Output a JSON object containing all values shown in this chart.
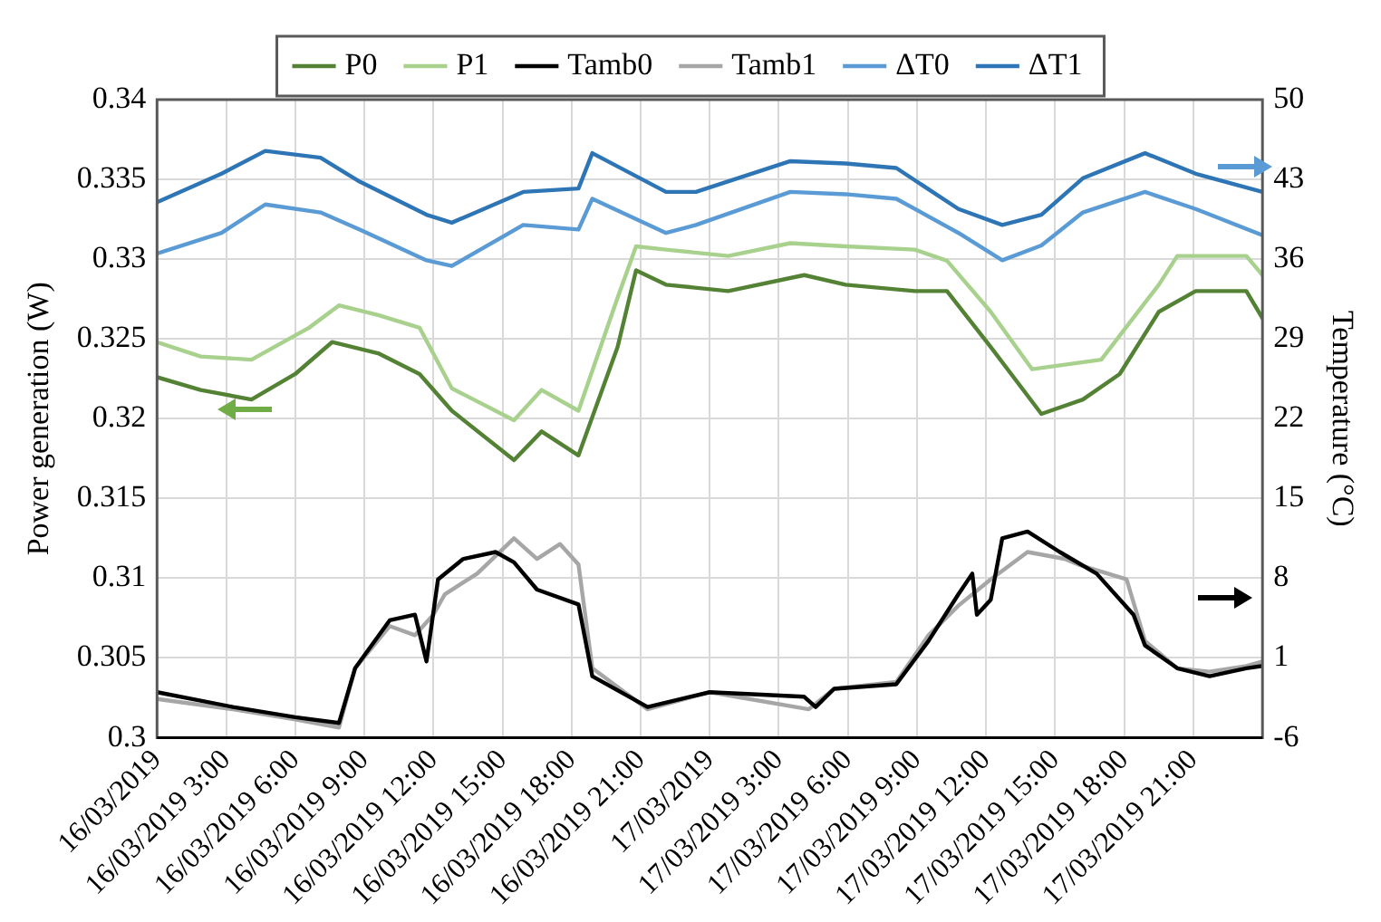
{
  "chart_data": {
    "type": "line",
    "ylabel": "Power generation (W)",
    "y2label": "Temperature (°C)",
    "xlim": [
      "2019-03-16T00:00",
      "2019-03-18T00:00"
    ],
    "xticks": [
      {
        "value": "2019-03-16T00:00",
        "label": "16/03/2019"
      },
      {
        "value": "2019-03-16T03:00",
        "label": "16/03/2019 3:00"
      },
      {
        "value": "2019-03-16T06:00",
        "label": "16/03/2019 6:00"
      },
      {
        "value": "2019-03-16T09:00",
        "label": "16/03/2019 9:00"
      },
      {
        "value": "2019-03-16T12:00",
        "label": "16/03/2019 12:00"
      },
      {
        "value": "2019-03-16T15:00",
        "label": "16/03/2019 15:00"
      },
      {
        "value": "2019-03-16T18:00",
        "label": "16/03/2019 18:00"
      },
      {
        "value": "2019-03-16T21:00",
        "label": "16/03/2019 21:00"
      },
      {
        "value": "2019-03-17T00:00",
        "label": "17/03/2019"
      },
      {
        "value": "2019-03-17T03:00",
        "label": "17/03/2019 3:00"
      },
      {
        "value": "2019-03-17T06:00",
        "label": "17/03/2019 6:00"
      },
      {
        "value": "2019-03-17T09:00",
        "label": "17/03/2019 9:00"
      },
      {
        "value": "2019-03-17T12:00",
        "label": "17/03/2019 12:00"
      },
      {
        "value": "2019-03-17T15:00",
        "label": "17/03/2019 15:00"
      },
      {
        "value": "2019-03-17T18:00",
        "label": "17/03/2019 18:00"
      },
      {
        "value": "2019-03-17T21:00",
        "label": "17/03/2019 21:00"
      }
    ],
    "ylim": [
      0.3,
      0.34
    ],
    "yticks": [
      0.3,
      0.305,
      0.31,
      0.315,
      0.32,
      0.325,
      0.33,
      0.335,
      0.34
    ],
    "y2lim": [
      -6,
      50
    ],
    "y2ticks": [
      -6,
      1,
      8,
      15,
      22,
      29,
      36,
      43,
      50
    ],
    "grid": true,
    "legend": "top",
    "marker": "none",
    "line_style": "solid",
    "series": [
      {
        "name": "P0",
        "color": "#548235",
        "x": [
          "2019-03-16T00:00",
          "2019-03-16T01:54",
          "2019-03-16T04:06",
          "2019-03-16T06:00",
          "2019-03-16T07:36",
          "2019-03-16T09:36",
          "2019-03-16T11:24",
          "2019-03-16T12:48",
          "2019-03-16T15:30",
          "2019-03-16T16:42",
          "2019-03-16T18:18",
          "2019-03-16T20:00",
          "2019-03-16T20:48",
          "2019-03-16T22:06",
          "2019-03-17T00:48",
          "2019-03-17T04:06",
          "2019-03-17T05:54",
          "2019-03-17T08:54",
          "2019-03-17T10:18",
          "2019-03-17T12:12",
          "2019-03-17T14:24",
          "2019-03-17T16:12",
          "2019-03-17T17:48",
          "2019-03-17T19:30",
          "2019-03-17T21:06",
          "2019-03-17T23:18",
          "2019-03-18T00:00"
        ],
        "values": [
          0.3226,
          0.3218,
          0.3212,
          0.3228,
          0.3248,
          0.3241,
          0.3228,
          0.3205,
          0.3174,
          0.3192,
          0.3177,
          0.3245,
          0.3293,
          0.3284,
          0.328,
          0.329,
          0.3284,
          0.328,
          0.328,
          0.3245,
          0.3203,
          0.3212,
          0.3228,
          0.3267,
          0.328,
          0.328,
          0.3263
        ]
      },
      {
        "name": "P1",
        "color": "#a9d18e",
        "x": [
          "2019-03-16T00:00",
          "2019-03-16T01:54",
          "2019-03-16T04:06",
          "2019-03-16T06:36",
          "2019-03-16T07:54",
          "2019-03-16T09:36",
          "2019-03-16T11:24",
          "2019-03-16T12:48",
          "2019-03-16T15:30",
          "2019-03-16T16:42",
          "2019-03-16T18:18",
          "2019-03-16T20:00",
          "2019-03-16T20:48",
          "2019-03-16T22:06",
          "2019-03-17T00:48",
          "2019-03-17T03:30",
          "2019-03-17T05:54",
          "2019-03-17T08:54",
          "2019-03-17T10:18",
          "2019-03-17T12:12",
          "2019-03-17T14:00",
          "2019-03-17T17:00",
          "2019-03-17T19:30",
          "2019-03-17T20:18",
          "2019-03-17T23:18",
          "2019-03-18T00:00"
        ],
        "values": [
          0.3248,
          0.3239,
          0.3237,
          0.3257,
          0.3271,
          0.3265,
          0.3257,
          0.3219,
          0.3199,
          0.3218,
          0.3205,
          0.3276,
          0.3308,
          0.3306,
          0.3302,
          0.331,
          0.3308,
          0.3306,
          0.3299,
          0.3267,
          0.3231,
          0.3237,
          0.3284,
          0.3302,
          0.3302,
          0.329
        ]
      },
      {
        "name": "Tamb0",
        "color": "#000000",
        "axis": "y2",
        "x": [
          "2019-03-16T00:00",
          "2019-03-16T03:18",
          "2019-03-16T06:00",
          "2019-03-16T07:54",
          "2019-03-16T08:36",
          "2019-03-16T10:06",
          "2019-03-16T11:12",
          "2019-03-16T11:42",
          "2019-03-16T12:12",
          "2019-03-16T13:18",
          "2019-03-16T14:42",
          "2019-03-16T15:30",
          "2019-03-16T16:30",
          "2019-03-16T18:18",
          "2019-03-16T18:54",
          "2019-03-16T21:18",
          "2019-03-17T00:00",
          "2019-03-17T04:06",
          "2019-03-17T04:36",
          "2019-03-17T05:24",
          "2019-03-17T08:06",
          "2019-03-17T09:30",
          "2019-03-17T10:48",
          "2019-03-17T11:24",
          "2019-03-17T11:36",
          "2019-03-17T12:12",
          "2019-03-17T12:42",
          "2019-03-17T13:48",
          "2019-03-17T15:12",
          "2019-03-17T16:48",
          "2019-03-17T18:24",
          "2019-03-17T18:54",
          "2019-03-17T20:18",
          "2019-03-17T21:42",
          "2019-03-17T23:18",
          "2019-03-18T00:00"
        ],
        "values": [
          -2.0,
          -3.3,
          -4.2,
          -4.7,
          0.1,
          4.3,
          4.8,
          0.7,
          7.9,
          9.7,
          10.3,
          9.4,
          7.0,
          5.7,
          -0.6,
          -3.3,
          -2.0,
          -2.4,
          -3.3,
          -1.7,
          -1.3,
          2.5,
          6.6,
          8.4,
          4.8,
          6.1,
          11.5,
          12.1,
          10.3,
          8.4,
          4.8,
          2.1,
          0.1,
          -0.6,
          0.1,
          0.3
        ]
      },
      {
        "name": "Tamb1",
        "color": "#a6a6a6",
        "axis": "y2",
        "x": [
          "2019-03-16T00:00",
          "2019-03-16T03:18",
          "2019-03-16T06:00",
          "2019-03-16T07:54",
          "2019-03-16T08:36",
          "2019-03-16T10:06",
          "2019-03-16T11:12",
          "2019-03-16T12:00",
          "2019-03-16T12:30",
          "2019-03-16T13:54",
          "2019-03-16T15:30",
          "2019-03-16T16:30",
          "2019-03-16T17:30",
          "2019-03-16T18:18",
          "2019-03-16T18:54",
          "2019-03-16T21:18",
          "2019-03-17T00:00",
          "2019-03-17T04:18",
          "2019-03-17T05:24",
          "2019-03-17T08:06",
          "2019-03-17T09:30",
          "2019-03-17T10:48",
          "2019-03-17T12:12",
          "2019-03-17T13:48",
          "2019-03-17T15:24",
          "2019-03-17T16:00",
          "2019-03-17T18:06",
          "2019-03-17T18:54",
          "2019-03-17T20:18",
          "2019-03-17T21:42",
          "2019-03-17T23:18",
          "2019-03-18T00:00"
        ],
        "values": [
          -2.6,
          -3.5,
          -4.4,
          -5.1,
          0.1,
          3.8,
          3.0,
          4.8,
          6.6,
          8.4,
          11.5,
          9.7,
          11.0,
          9.2,
          0.1,
          -3.5,
          -2.0,
          -3.5,
          -1.7,
          -1.1,
          3.0,
          5.6,
          7.9,
          10.3,
          9.7,
          9.2,
          7.9,
          2.5,
          0.1,
          -0.2,
          0.3,
          0.7
        ]
      },
      {
        "name": "ΔT0",
        "color": "#5b9bd5",
        "axis": "y2",
        "x": [
          "2019-03-16T00:00",
          "2019-03-16T02:48",
          "2019-03-16T04:42",
          "2019-03-16T07:06",
          "2019-03-16T08:48",
          "2019-03-16T11:42",
          "2019-03-16T12:48",
          "2019-03-16T15:54",
          "2019-03-16T18:18",
          "2019-03-16T18:54",
          "2019-03-16T22:06",
          "2019-03-16T23:24",
          "2019-03-17T03:30",
          "2019-03-17T05:54",
          "2019-03-17T08:06",
          "2019-03-17T10:48",
          "2019-03-17T12:42",
          "2019-03-17T14:24",
          "2019-03-17T16:12",
          "2019-03-17T18:54",
          "2019-03-17T21:06",
          "2019-03-18T00:00"
        ],
        "values": [
          36.5,
          38.3,
          40.8,
          40.1,
          38.6,
          35.9,
          35.4,
          39.0,
          38.6,
          41.3,
          38.3,
          39.0,
          41.9,
          41.7,
          41.3,
          38.3,
          35.9,
          37.2,
          40.1,
          41.9,
          40.4,
          38.1
        ]
      },
      {
        "name": "ΔT1",
        "color": "#2e75b6",
        "axis": "y2",
        "x": [
          "2019-03-16T00:00",
          "2019-03-16T02:48",
          "2019-03-16T04:42",
          "2019-03-16T07:06",
          "2019-03-16T08:48",
          "2019-03-16T11:42",
          "2019-03-16T12:48",
          "2019-03-16T15:54",
          "2019-03-16T18:18",
          "2019-03-16T18:54",
          "2019-03-16T22:06",
          "2019-03-16T23:24",
          "2019-03-17T03:30",
          "2019-03-17T05:54",
          "2019-03-17T08:06",
          "2019-03-17T10:48",
          "2019-03-17T12:42",
          "2019-03-17T14:24",
          "2019-03-17T16:12",
          "2019-03-17T18:54",
          "2019-03-17T21:06",
          "2019-03-18T00:00"
        ],
        "values": [
          41.0,
          43.5,
          45.5,
          44.9,
          42.8,
          39.9,
          39.2,
          41.9,
          42.2,
          45.3,
          41.9,
          41.9,
          44.6,
          44.4,
          44.0,
          40.4,
          39.0,
          39.9,
          43.1,
          45.3,
          43.5,
          41.9
        ]
      }
    ]
  }
}
